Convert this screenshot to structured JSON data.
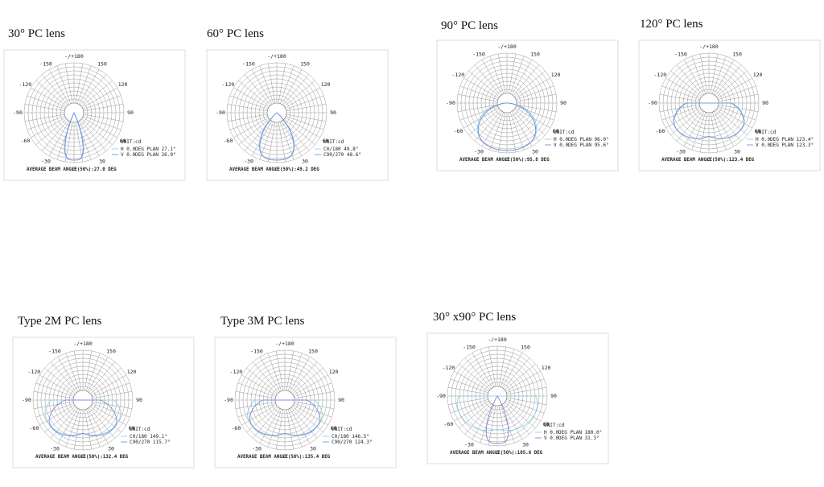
{
  "angle_labels": [
    "-/+180",
    "150",
    "120",
    "90",
    "60",
    "30",
    "0",
    "-30",
    "-60",
    "-90",
    "-120",
    "-150"
  ],
  "unit": "UNIT:cd",
  "panels": [
    {
      "title": "30°  PC lens",
      "legend": [
        "H 0.0DEG PLAN 27.1°",
        "V 0.0DEG PLAN 26.9°"
      ],
      "average": "AVERAGE BEAM ANGLE(50%):27.0 DEG"
    },
    {
      "title": "60°  PC lens",
      "legend": [
        "C0/180 49.8°",
        "C90/270 48.6°"
      ],
      "average": "AVERAGE BEAM ANGLE(50%):49.2 DEG"
    },
    {
      "title": "90°  PC lens",
      "legend": [
        "H 0.0DEG PLAN 96.0°",
        "V 0.0DEG PLAN 95.6°"
      ],
      "average": "AVERAGE BEAM ANGLE(50%):95.8 DEG"
    },
    {
      "title": "120°  PC lens",
      "legend": [
        "H 0.0DEG PLAN 123.4°",
        "V 0.0DEG PLAN 123.3°"
      ],
      "average": "AVERAGE BEAM ANGLE(50%):123.4 DEG"
    },
    {
      "title": "Type 2M PC lens",
      "legend": [
        "C0/180 149.1°",
        "C90/270 115.7°"
      ],
      "average": "AVERAGE BEAM ANGLE(50%):132.4 DEG"
    },
    {
      "title": "Type 3M PC lens",
      "legend": [
        "C0/180 146.5°",
        "C90/270 124.3°"
      ],
      "average": "AVERAGE BEAM ANGLE(50%):135.4 DEG"
    },
    {
      "title": "30° x90° PC lens",
      "legend": [
        "H 0.0DEG PLAN 180.0°",
        "V 0.0DEG PLAN 31.3°"
      ],
      "average": "AVERAGE BEAM ANGLE(50%):105.6 DEG"
    }
  ]
}
